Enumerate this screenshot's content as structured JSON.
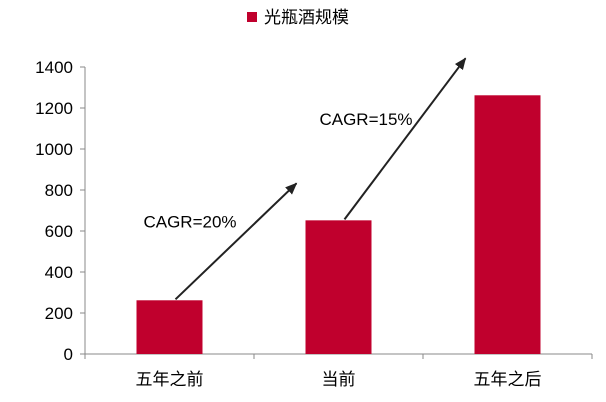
{
  "chart_data": {
    "type": "bar",
    "title": "",
    "xlabel": "",
    "ylabel": "",
    "categories": [
      "五年之前",
      "当前",
      "五年之后"
    ],
    "series": [
      {
        "name": "光瓶酒规模",
        "values": [
          262,
          652,
          1262
        ]
      }
    ],
    "ylim": [
      0,
      1400
    ],
    "yticks": [
      0,
      200,
      400,
      600,
      800,
      1000,
      1200,
      1400
    ],
    "grid": false,
    "legend_position": "top-center",
    "colors": {
      "bar": "#C0002D",
      "axis": "#888888",
      "arrow": "#222222"
    },
    "annotations": [
      {
        "text": "CAGR=20%",
        "from_category": 0,
        "to_category": 1
      },
      {
        "text": "CAGR=15%",
        "from_category": 1,
        "to_category": 2
      }
    ]
  }
}
